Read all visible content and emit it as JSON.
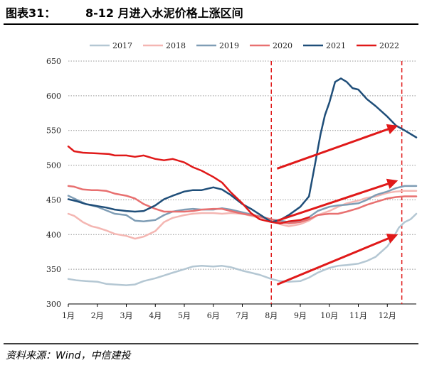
{
  "header": {
    "figure_label": "图表31：",
    "title": "8-12 月进入水泥价格上涨区间"
  },
  "source": "资料来源：Wind，中信建投",
  "chart_data": {
    "type": "line",
    "title": "8-12 月进入水泥价格上涨区间",
    "xlabel": "",
    "ylabel": "",
    "x_ticks": [
      "1月",
      "2月",
      "3月",
      "4月",
      "5月",
      "6月",
      "7月",
      "8月",
      "9月",
      "10月",
      "11月",
      "12月"
    ],
    "xlim": [
      1,
      13
    ],
    "ylim": [
      300,
      650
    ],
    "y_ticks": [
      300,
      350,
      400,
      450,
      500,
      550,
      600,
      650
    ],
    "grid": "horizontal-dotted",
    "legend_position": "top",
    "highlight_region": {
      "from_month": 8,
      "to_month": 12.5,
      "style": "red-dashed-verticals"
    },
    "series": [
      {
        "name": "2017",
        "color": "#b4c7d3",
        "width": 2.5,
        "points": [
          [
            1.0,
            336
          ],
          [
            1.3,
            334
          ],
          [
            1.6,
            333
          ],
          [
            2.0,
            332
          ],
          [
            2.3,
            329
          ],
          [
            2.6,
            328
          ],
          [
            3.0,
            327
          ],
          [
            3.3,
            328
          ],
          [
            3.6,
            333
          ],
          [
            4.0,
            337
          ],
          [
            4.3,
            341
          ],
          [
            4.6,
            345
          ],
          [
            5.0,
            350
          ],
          [
            5.3,
            354
          ],
          [
            5.6,
            355
          ],
          [
            6.0,
            354
          ],
          [
            6.3,
            355
          ],
          [
            6.6,
            353
          ],
          [
            7.0,
            348
          ],
          [
            7.3,
            345
          ],
          [
            7.6,
            342
          ],
          [
            8.0,
            336
          ],
          [
            8.3,
            333
          ],
          [
            8.6,
            332
          ],
          [
            9.0,
            333
          ],
          [
            9.3,
            338
          ],
          [
            9.6,
            345
          ],
          [
            10.0,
            352
          ],
          [
            10.3,
            355
          ],
          [
            10.6,
            356
          ],
          [
            11.0,
            358
          ],
          [
            11.3,
            362
          ],
          [
            11.6,
            368
          ],
          [
            12.0,
            383
          ],
          [
            12.2,
            395
          ],
          [
            12.4,
            410
          ],
          [
            12.6,
            418
          ],
          [
            12.8,
            422
          ],
          [
            13.0,
            430
          ]
        ]
      },
      {
        "name": "2018",
        "color": "#f4b6b2",
        "width": 2.5,
        "points": [
          [
            1.0,
            430
          ],
          [
            1.2,
            427
          ],
          [
            1.5,
            418
          ],
          [
            1.8,
            412
          ],
          [
            2.0,
            410
          ],
          [
            2.3,
            406
          ],
          [
            2.6,
            401
          ],
          [
            3.0,
            398
          ],
          [
            3.3,
            394
          ],
          [
            3.6,
            397
          ],
          [
            4.0,
            405
          ],
          [
            4.3,
            418
          ],
          [
            4.6,
            424
          ],
          [
            5.0,
            428
          ],
          [
            5.3,
            430
          ],
          [
            5.6,
            431
          ],
          [
            6.0,
            431
          ],
          [
            6.3,
            430
          ],
          [
            6.6,
            431
          ],
          [
            7.0,
            430
          ],
          [
            7.3,
            427
          ],
          [
            7.6,
            424
          ],
          [
            8.0,
            422
          ],
          [
            8.3,
            415
          ],
          [
            8.6,
            412
          ],
          [
            9.0,
            415
          ],
          [
            9.3,
            420
          ],
          [
            9.6,
            428
          ],
          [
            10.0,
            434
          ],
          [
            10.3,
            440
          ],
          [
            10.6,
            445
          ],
          [
            11.0,
            449
          ],
          [
            11.3,
            453
          ],
          [
            11.6,
            455
          ],
          [
            12.0,
            460
          ],
          [
            12.3,
            462
          ],
          [
            12.6,
            463
          ],
          [
            13.0,
            463
          ]
        ]
      },
      {
        "name": "2019",
        "color": "#7f9db5",
        "width": 2.5,
        "points": [
          [
            1.0,
            456
          ],
          [
            1.3,
            450
          ],
          [
            1.6,
            444
          ],
          [
            2.0,
            440
          ],
          [
            2.3,
            435
          ],
          [
            2.6,
            430
          ],
          [
            3.0,
            428
          ],
          [
            3.3,
            420
          ],
          [
            3.6,
            419
          ],
          [
            4.0,
            421
          ],
          [
            4.3,
            428
          ],
          [
            4.6,
            433
          ],
          [
            5.0,
            436
          ],
          [
            5.3,
            437
          ],
          [
            5.6,
            436
          ],
          [
            6.0,
            436
          ],
          [
            6.3,
            438
          ],
          [
            6.6,
            436
          ],
          [
            7.0,
            432
          ],
          [
            7.3,
            429
          ],
          [
            7.6,
            426
          ],
          [
            8.0,
            422
          ],
          [
            8.3,
            420
          ],
          [
            8.6,
            418
          ],
          [
            9.0,
            420
          ],
          [
            9.3,
            425
          ],
          [
            9.6,
            434
          ],
          [
            10.0,
            440
          ],
          [
            10.3,
            442
          ],
          [
            10.6,
            443
          ],
          [
            11.0,
            445
          ],
          [
            11.3,
            450
          ],
          [
            11.6,
            457
          ],
          [
            12.0,
            462
          ],
          [
            12.3,
            467
          ],
          [
            12.6,
            470
          ],
          [
            13.0,
            470
          ]
        ]
      },
      {
        "name": "2020",
        "color": "#e87070",
        "width": 2.5,
        "points": [
          [
            1.0,
            470
          ],
          [
            1.2,
            469
          ],
          [
            1.5,
            465
          ],
          [
            1.8,
            464
          ],
          [
            2.0,
            464
          ],
          [
            2.3,
            463
          ],
          [
            2.6,
            459
          ],
          [
            3.0,
            456
          ],
          [
            3.3,
            452
          ],
          [
            3.6,
            444
          ],
          [
            4.0,
            437
          ],
          [
            4.3,
            433
          ],
          [
            4.6,
            433
          ],
          [
            5.0,
            433
          ],
          [
            5.3,
            434
          ],
          [
            5.6,
            436
          ],
          [
            6.0,
            437
          ],
          [
            6.3,
            437
          ],
          [
            6.6,
            434
          ],
          [
            7.0,
            430
          ],
          [
            7.3,
            428
          ],
          [
            7.6,
            426
          ],
          [
            8.0,
            422
          ],
          [
            8.3,
            418
          ],
          [
            8.6,
            416
          ],
          [
            9.0,
            418
          ],
          [
            9.3,
            422
          ],
          [
            9.6,
            428
          ],
          [
            10.0,
            430
          ],
          [
            10.3,
            430
          ],
          [
            10.6,
            433
          ],
          [
            11.0,
            438
          ],
          [
            11.3,
            443
          ],
          [
            11.6,
            447
          ],
          [
            12.0,
            452
          ],
          [
            12.3,
            454
          ],
          [
            12.6,
            455
          ],
          [
            13.0,
            455
          ]
        ]
      },
      {
        "name": "2021",
        "color": "#1f4e79",
        "width": 2.5,
        "points": [
          [
            1.0,
            451
          ],
          [
            1.3,
            448
          ],
          [
            1.6,
            444
          ],
          [
            2.0,
            441
          ],
          [
            2.3,
            439
          ],
          [
            2.6,
            436
          ],
          [
            3.0,
            434
          ],
          [
            3.3,
            433
          ],
          [
            3.6,
            434
          ],
          [
            4.0,
            442
          ],
          [
            4.3,
            451
          ],
          [
            4.6,
            456
          ],
          [
            5.0,
            462
          ],
          [
            5.3,
            464
          ],
          [
            5.6,
            464
          ],
          [
            6.0,
            468
          ],
          [
            6.3,
            465
          ],
          [
            6.6,
            457
          ],
          [
            7.0,
            444
          ],
          [
            7.3,
            437
          ],
          [
            7.6,
            429
          ],
          [
            8.0,
            418
          ],
          [
            8.3,
            421
          ],
          [
            8.6,
            428
          ],
          [
            9.0,
            440
          ],
          [
            9.3,
            455
          ],
          [
            9.5,
            500
          ],
          [
            9.7,
            545
          ],
          [
            9.85,
            572
          ],
          [
            10.0,
            590
          ],
          [
            10.2,
            620
          ],
          [
            10.4,
            625
          ],
          [
            10.6,
            620
          ],
          [
            10.8,
            611
          ],
          [
            11.0,
            609
          ],
          [
            11.3,
            595
          ],
          [
            11.6,
            585
          ],
          [
            12.0,
            570
          ],
          [
            12.3,
            557
          ],
          [
            12.6,
            550
          ],
          [
            13.0,
            540
          ]
        ]
      },
      {
        "name": "2022",
        "color": "#e01919",
        "width": 2.5,
        "points": [
          [
            1.0,
            527
          ],
          [
            1.2,
            520
          ],
          [
            1.5,
            518
          ],
          [
            2.0,
            517
          ],
          [
            2.4,
            516
          ],
          [
            2.6,
            514
          ],
          [
            3.0,
            514
          ],
          [
            3.3,
            512
          ],
          [
            3.6,
            514
          ],
          [
            4.0,
            509
          ],
          [
            4.3,
            507
          ],
          [
            4.6,
            509
          ],
          [
            5.0,
            504
          ],
          [
            5.3,
            497
          ],
          [
            5.6,
            492
          ],
          [
            6.0,
            483
          ],
          [
            6.3,
            475
          ],
          [
            6.6,
            461
          ],
          [
            7.0,
            445
          ],
          [
            7.3,
            431
          ],
          [
            7.6,
            422
          ],
          [
            8.0,
            418
          ],
          [
            8.3,
            416
          ],
          [
            8.6,
            419
          ],
          [
            9.0,
            421
          ],
          [
            9.3,
            425
          ]
        ]
      }
    ],
    "annotations": [
      {
        "type": "arrow",
        "color": "#e01919",
        "from": [
          8.2,
          495
        ],
        "to": [
          12.3,
          556
        ]
      },
      {
        "type": "arrow",
        "color": "#e01919",
        "from": [
          8.2,
          420
        ],
        "to": [
          12.3,
          477
        ]
      },
      {
        "type": "arrow",
        "color": "#e01919",
        "from": [
          8.2,
          328
        ],
        "to": [
          12.3,
          399
        ]
      }
    ]
  }
}
